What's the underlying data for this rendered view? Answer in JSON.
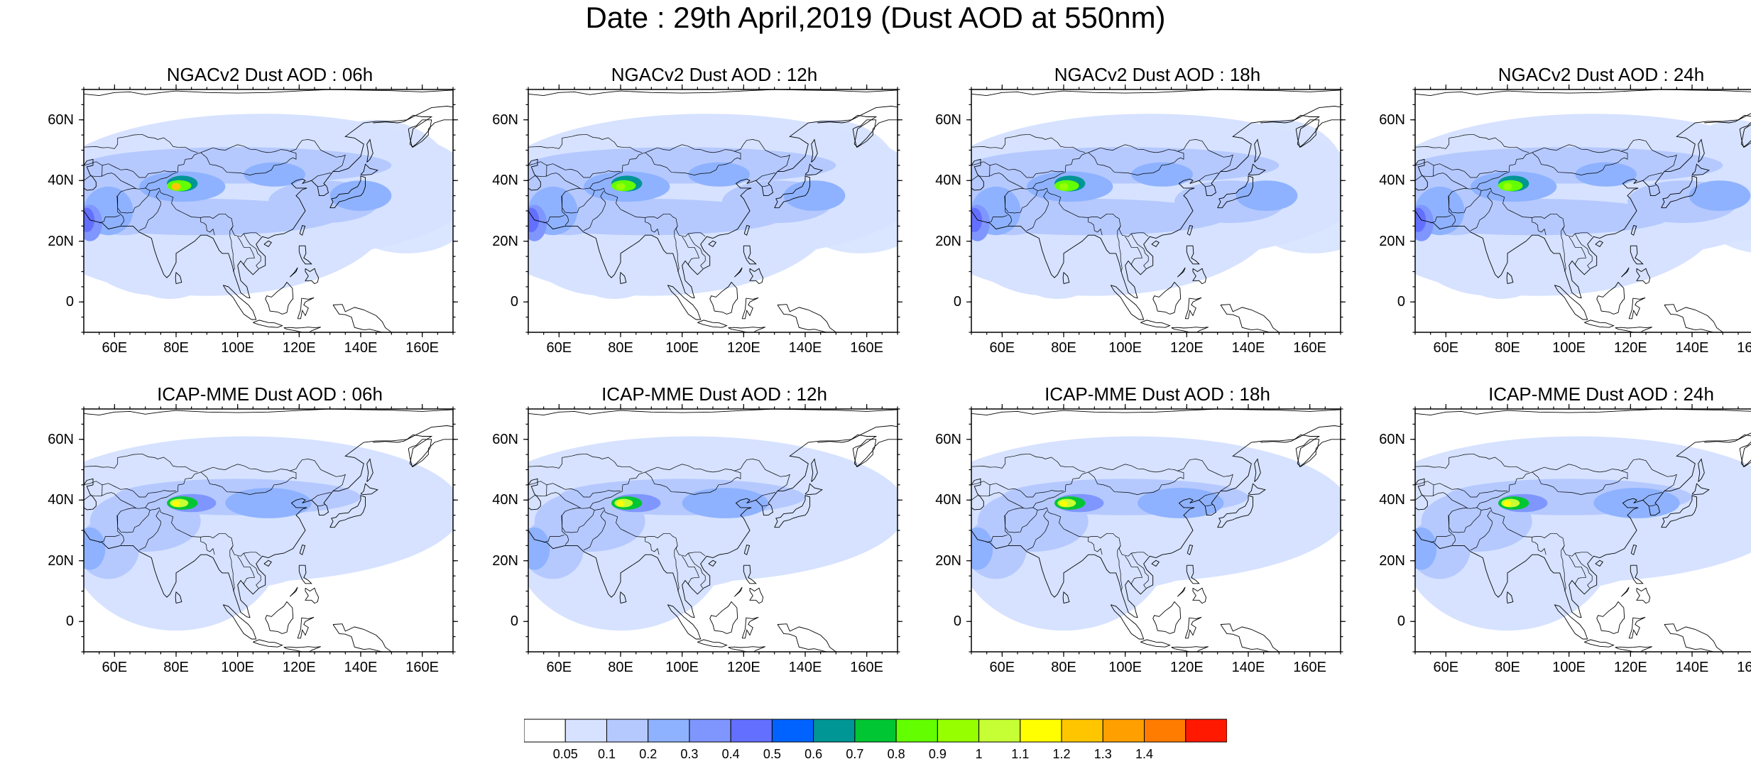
{
  "title": "Date : 29th April,2019 (Dust AOD at 550nm)",
  "panels": [
    {
      "title": "NGACv2 Dust AOD : 06h"
    },
    {
      "title": "NGACv2 Dust AOD : 12h"
    },
    {
      "title": "NGACv2 Dust AOD : 18h"
    },
    {
      "title": "NGACv2 Dust AOD : 24h"
    },
    {
      "title": "ICAP-MME Dust AOD : 06h"
    },
    {
      "title": "ICAP-MME Dust AOD : 12h"
    },
    {
      "title": "ICAP-MME Dust AOD : 18h"
    },
    {
      "title": "ICAP-MME Dust AOD : 24h"
    }
  ],
  "axes": {
    "lat_labels": [
      "60N",
      "40N",
      "20N",
      "0"
    ],
    "lat_values": [
      60,
      40,
      20,
      0
    ],
    "lon_labels": [
      "60E",
      "80E",
      "100E",
      "120E",
      "140E",
      "160E"
    ],
    "lon_values": [
      60,
      80,
      100,
      120,
      140,
      160
    ],
    "lon_range": [
      50,
      170
    ],
    "lat_range": [
      -10,
      70
    ]
  },
  "colorbar": {
    "colors": [
      "#ffffff",
      "#d6e2ff",
      "#b5c9ff",
      "#8eb2ff",
      "#7f96ff",
      "#6370ff",
      "#0063ff",
      "#009696",
      "#00c633",
      "#63ff00",
      "#96ff00",
      "#c6ff33",
      "#ffff00",
      "#ffc600",
      "#ffa000",
      "#ff7c00",
      "#ff1900"
    ],
    "labels": [
      "0.05",
      "0.1",
      "0.2",
      "0.3",
      "0.4",
      "0.5",
      "0.6",
      "0.7",
      "0.8",
      "0.9",
      "1",
      "1.1",
      "1.2",
      "1.3",
      "1.4"
    ]
  }
}
